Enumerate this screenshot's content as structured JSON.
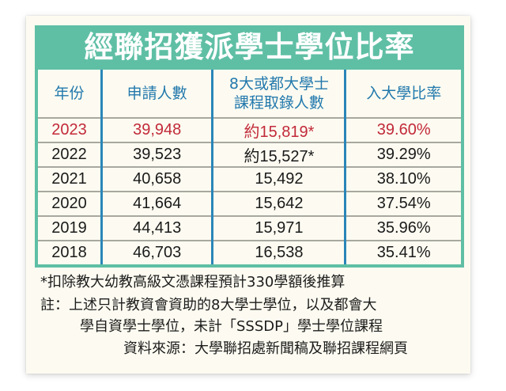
{
  "title": "經聯招獲派學士學位比率",
  "table": {
    "headers": {
      "year": "年份",
      "applicants": "申請人數",
      "admitted_line1": "8大或都大學士",
      "admitted_line2": "課程取錄人數",
      "rate": "入大學比率"
    },
    "rows": [
      {
        "year": "2023",
        "applicants": "39,948",
        "admitted": "約15,819*",
        "rate": "39.60%",
        "highlight": true
      },
      {
        "year": "2022",
        "applicants": "39,523",
        "admitted": "約15,527*",
        "rate": "39.29%"
      },
      {
        "year": "2021",
        "applicants": "40,658",
        "admitted": "15,492",
        "rate": "38.10%"
      },
      {
        "year": "2020",
        "applicants": "41,664",
        "admitted": "15,642",
        "rate": "37.54%"
      },
      {
        "year": "2019",
        "applicants": "44,413",
        "admitted": "15,971",
        "rate": "35.96%"
      },
      {
        "year": "2018",
        "applicants": "46,703",
        "admitted": "16,538",
        "rate": "35.41%"
      }
    ]
  },
  "notes": {
    "footnote": "*扣除教大幼教高級文憑課程預計330學額後推算",
    "remark_line1": "註：上述只計教資會資助的8大學士學位，以及都會大",
    "remark_line2": "學自資學士學位，未計「SSSDP」學士學位課程",
    "source": "資料來源：大學聯招處新聞稿及聯招課程網頁"
  },
  "colors": {
    "header_band": "#5fbfa5",
    "header_text": "#2379ad",
    "highlight_text": "#c22a3a",
    "column_divider": "#2a86b8",
    "background": "#fdfbf1"
  }
}
